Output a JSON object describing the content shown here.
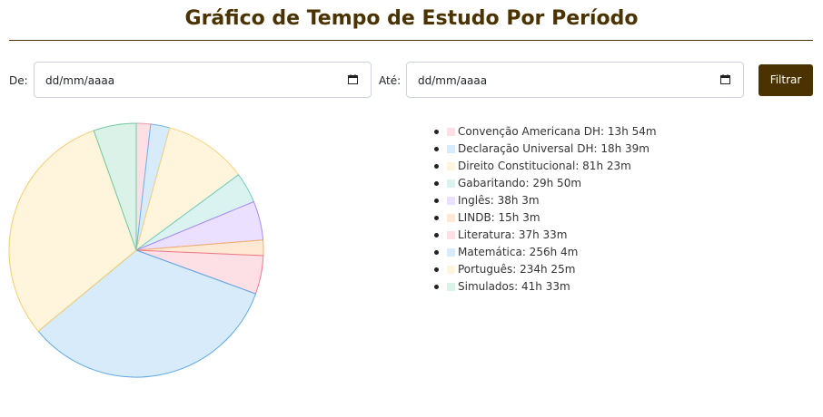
{
  "header": {
    "title": "Gráfico de Tempo de Estudo Por Período"
  },
  "filters": {
    "from_label": "De:",
    "from_value": "dd/mm/aaaa",
    "to_label": "Até:",
    "to_value": "dd/mm/aaaa",
    "button_label": "Filtrar"
  },
  "chart_data": {
    "type": "pie",
    "legend_position": "right",
    "slices": [
      {
        "label": "Convenção Americana DH: 13h 54m",
        "value": 834,
        "fill": "#fde0e6",
        "stroke": "#f49ab0"
      },
      {
        "label": "Declaração Universal DH: 18h 39m",
        "value": 1119,
        "fill": "#d8ebfb",
        "stroke": "#6fb3ea"
      },
      {
        "label": "Direito Constitucional: 81h 23m",
        "value": 4883,
        "fill": "#fff4dc",
        "stroke": "#f8d27a"
      },
      {
        "label": "Gabaritando: 29h 50m",
        "value": 1790,
        "fill": "#daf2f0",
        "stroke": "#6fcac0"
      },
      {
        "label": "Inglês: 38h 3m",
        "value": 2283,
        "fill": "#ebe0ff",
        "stroke": "#a98bf2"
      },
      {
        "label": "LINDB: 15h 3m",
        "value": 903,
        "fill": "#ffe9d4",
        "stroke": "#f7ae63"
      },
      {
        "label": "Literatura: 37h 33m",
        "value": 2253,
        "fill": "#fde0e6",
        "stroke": "#f0788f"
      },
      {
        "label": "Matemática: 256h 4m",
        "value": 15364,
        "fill": "#d8ebfb",
        "stroke": "#5ea8e6"
      },
      {
        "label": "Português: 234h 25m",
        "value": 14065,
        "fill": "#fff4dc",
        "stroke": "#f5cc6e"
      },
      {
        "label": "Simulados: 41h 33m",
        "value": 2493,
        "fill": "#daf2e8",
        "stroke": "#72c9a3"
      }
    ]
  }
}
